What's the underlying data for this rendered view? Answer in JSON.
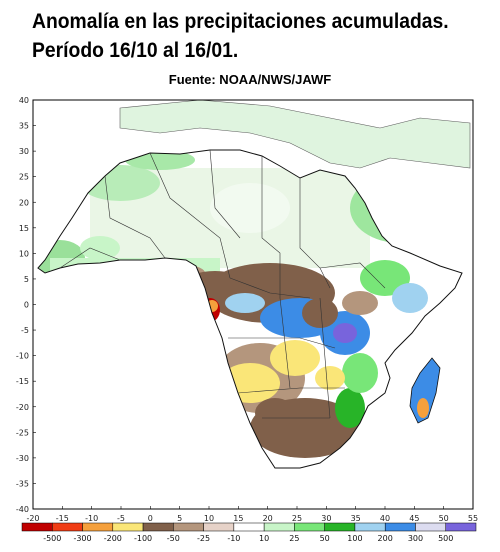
{
  "title_line1": "Anomalía en las precipitaciones acumuladas.",
  "title_line2": "Período 16/10 al 16/01.",
  "source": "Fuente: NOAA/NWS/JAWF",
  "map": {
    "lon_range": [
      -20,
      55
    ],
    "lat_range": [
      -40,
      40
    ],
    "lat_ticks": [
      40,
      35,
      30,
      25,
      20,
      15,
      10,
      5,
      0,
      -5,
      -10,
      -15,
      -20,
      -25,
      -30,
      -35,
      -40
    ],
    "lon_ticks": [
      -20,
      -15,
      -10,
      -5,
      0,
      5,
      10,
      15,
      20,
      25,
      30,
      35,
      40,
      45,
      50,
      55
    ],
    "lat_labels": [
      "40",
      "35",
      "30",
      "25",
      "20",
      "15",
      "10",
      "5",
      "0",
      "-5",
      "-10",
      "-15",
      "-20",
      "-25",
      "-30",
      "-35",
      "-40"
    ],
    "lon_labels": [
      "-20",
      "-15",
      "-10",
      "-5",
      "0",
      "5",
      "10",
      "15",
      "20",
      "25",
      "30",
      "35",
      "40",
      "45",
      "50",
      "55"
    ]
  },
  "colorbar": {
    "labels": [
      "-500",
      "-300",
      "-200",
      "-100",
      "-50",
      "-25",
      "-10",
      "10",
      "25",
      "50",
      "100",
      "200",
      "300",
      "500"
    ],
    "colors": [
      "#c00000",
      "#f03c14",
      "#f5a03c",
      "#fae678",
      "#80604a",
      "#b4967d",
      "#e6d2c8",
      "#ffffff",
      "#c8f5c8",
      "#78e678",
      "#28b428",
      "#a0d2f0",
      "#3c8ce6",
      "#dcdcf0",
      "#7864dc"
    ]
  }
}
